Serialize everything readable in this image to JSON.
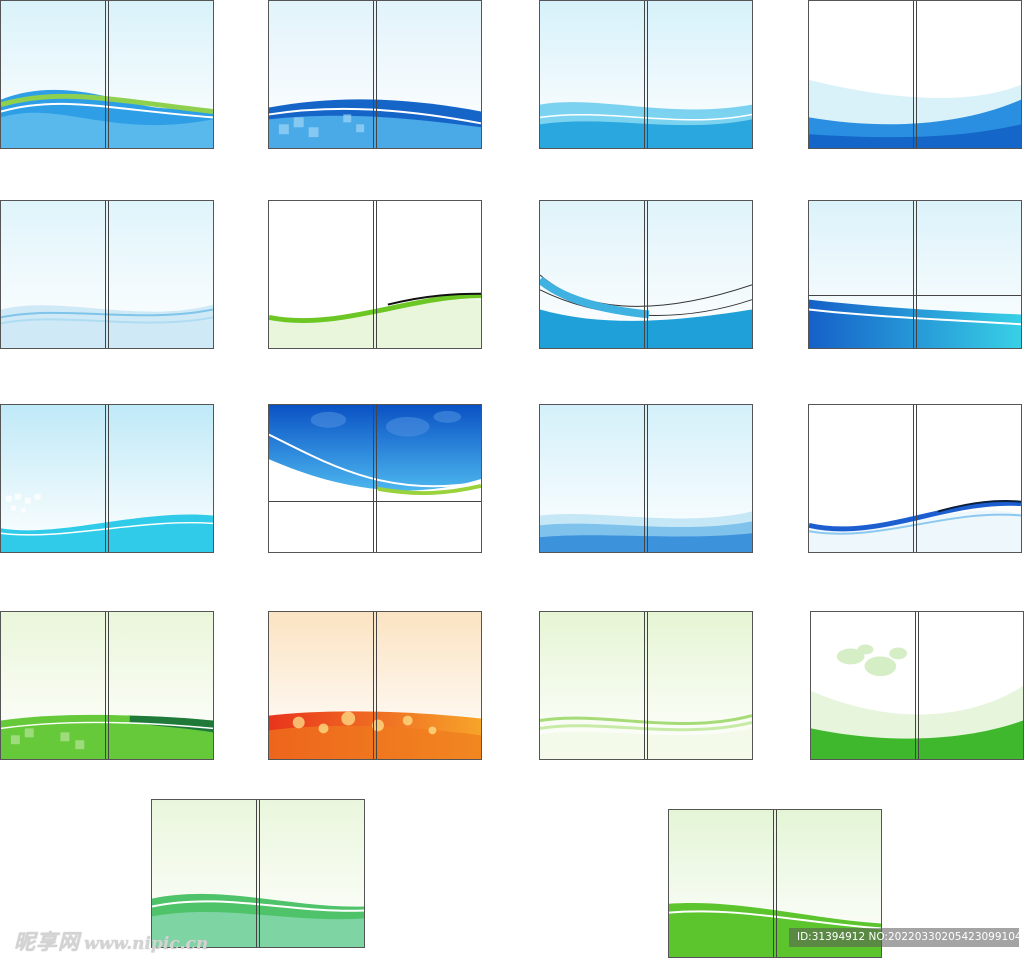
{
  "watermark": {
    "site_name": "昵享网",
    "url": "www.nipic.cn"
  },
  "image_id": {
    "text": "ID:31394912 NO:20220330205423099104"
  },
  "templates": [
    {
      "style": "blue-green-wave"
    },
    {
      "style": "deep-blue-mosaic-wave"
    },
    {
      "style": "aqua-light-wave"
    },
    {
      "style": "blue-wave-bottom"
    },
    {
      "style": "pale-blue-ribbon"
    },
    {
      "style": "green-black-ribbon"
    },
    {
      "style": "cyan-arcs"
    },
    {
      "style": "blue-band-with-fold"
    },
    {
      "style": "cyan-halftone-wave"
    },
    {
      "style": "blue-world-map-top"
    },
    {
      "style": "layered-blue-waves"
    },
    {
      "style": "blue-black-ribbon"
    },
    {
      "style": "green-mosaic-wave"
    },
    {
      "style": "orange-bokeh-wave"
    },
    {
      "style": "pale-green-ribbon"
    },
    {
      "style": "green-world-map"
    },
    {
      "style": "green-wave-bottom"
    },
    {
      "style": "green-curve-bottom"
    }
  ],
  "colors": {
    "blue": "#1a7fd6",
    "cyan": "#27c3e6",
    "green": "#5cc626",
    "orange": "#f08a1c"
  }
}
